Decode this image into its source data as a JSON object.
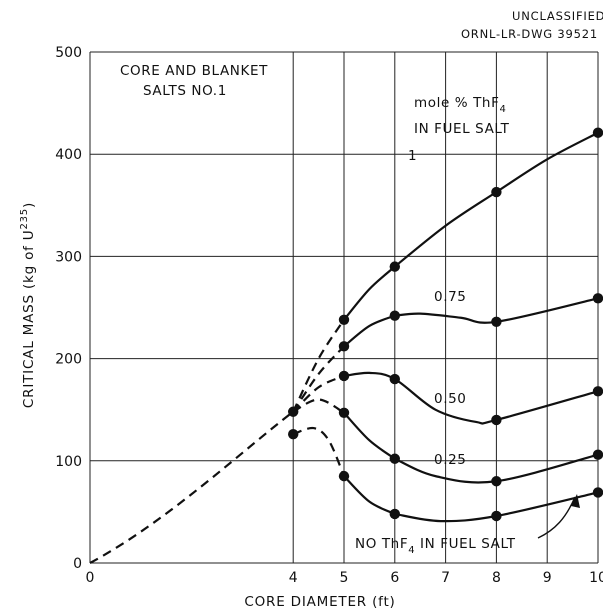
{
  "header": {
    "line1": "UNCLASSIFIED",
    "line2": "ORNL-LR-DWG 39521"
  },
  "chart_data": {
    "type": "line",
    "xlabel": "CORE DIAMETER (ft)",
    "ylabel": "CRITICAL MASS (kg of U235)",
    "ylabel_parts": {
      "main": "CRITICAL MASS (kg of U",
      "sup": "235",
      "tail": ")"
    },
    "xlim": [
      0,
      10
    ],
    "ylim": [
      0,
      500
    ],
    "xticks": [
      0,
      4,
      5,
      6,
      7,
      8,
      9,
      10
    ],
    "xtick_labels": [
      "0",
      "4",
      "5",
      "6",
      "7",
      "8",
      "9",
      "10"
    ],
    "yticks": [
      0,
      100,
      200,
      300,
      400,
      500
    ],
    "ytick_labels": [
      "0",
      "100",
      "200",
      "300",
      "400",
      "500"
    ],
    "grid": true,
    "annotations": {
      "core_line1": "CORE AND BLANKET",
      "core_line2": "SALTS NO.1",
      "legend_line1": "mole % ThF",
      "legend_sub": "4",
      "legend_line2": "IN FUEL SALT",
      "label_1": "1",
      "label_075": "0.75",
      "label_050": "0.50",
      "label_025": "0.25",
      "label_none_a": "NO ThF",
      "label_none_sub": "4",
      "label_none_b": " IN FUEL SALT"
    },
    "series": [
      {
        "name": "1",
        "points": [
          [
            4,
            148
          ],
          [
            5,
            238
          ],
          [
            6,
            290
          ],
          [
            8,
            363
          ],
          [
            10,
            421
          ]
        ]
      },
      {
        "name": "0.75",
        "points": [
          [
            4,
            148
          ],
          [
            5,
            212
          ],
          [
            6,
            242
          ],
          [
            8,
            236
          ],
          [
            10,
            259
          ]
        ]
      },
      {
        "name": "0.50",
        "points": [
          [
            4,
            148
          ],
          [
            5,
            183
          ],
          [
            6,
            180
          ],
          [
            8,
            140
          ],
          [
            10,
            168
          ]
        ]
      },
      {
        "name": "0.25",
        "points": [
          [
            4,
            148
          ],
          [
            5,
            147
          ],
          [
            6,
            102
          ],
          [
            8,
            80
          ],
          [
            10,
            106
          ]
        ]
      },
      {
        "name": "NO ThF4 IN FUEL SALT",
        "points": [
          [
            4,
            126
          ],
          [
            5,
            85
          ],
          [
            6,
            48
          ],
          [
            8,
            46
          ],
          [
            10,
            69
          ]
        ]
      }
    ]
  }
}
